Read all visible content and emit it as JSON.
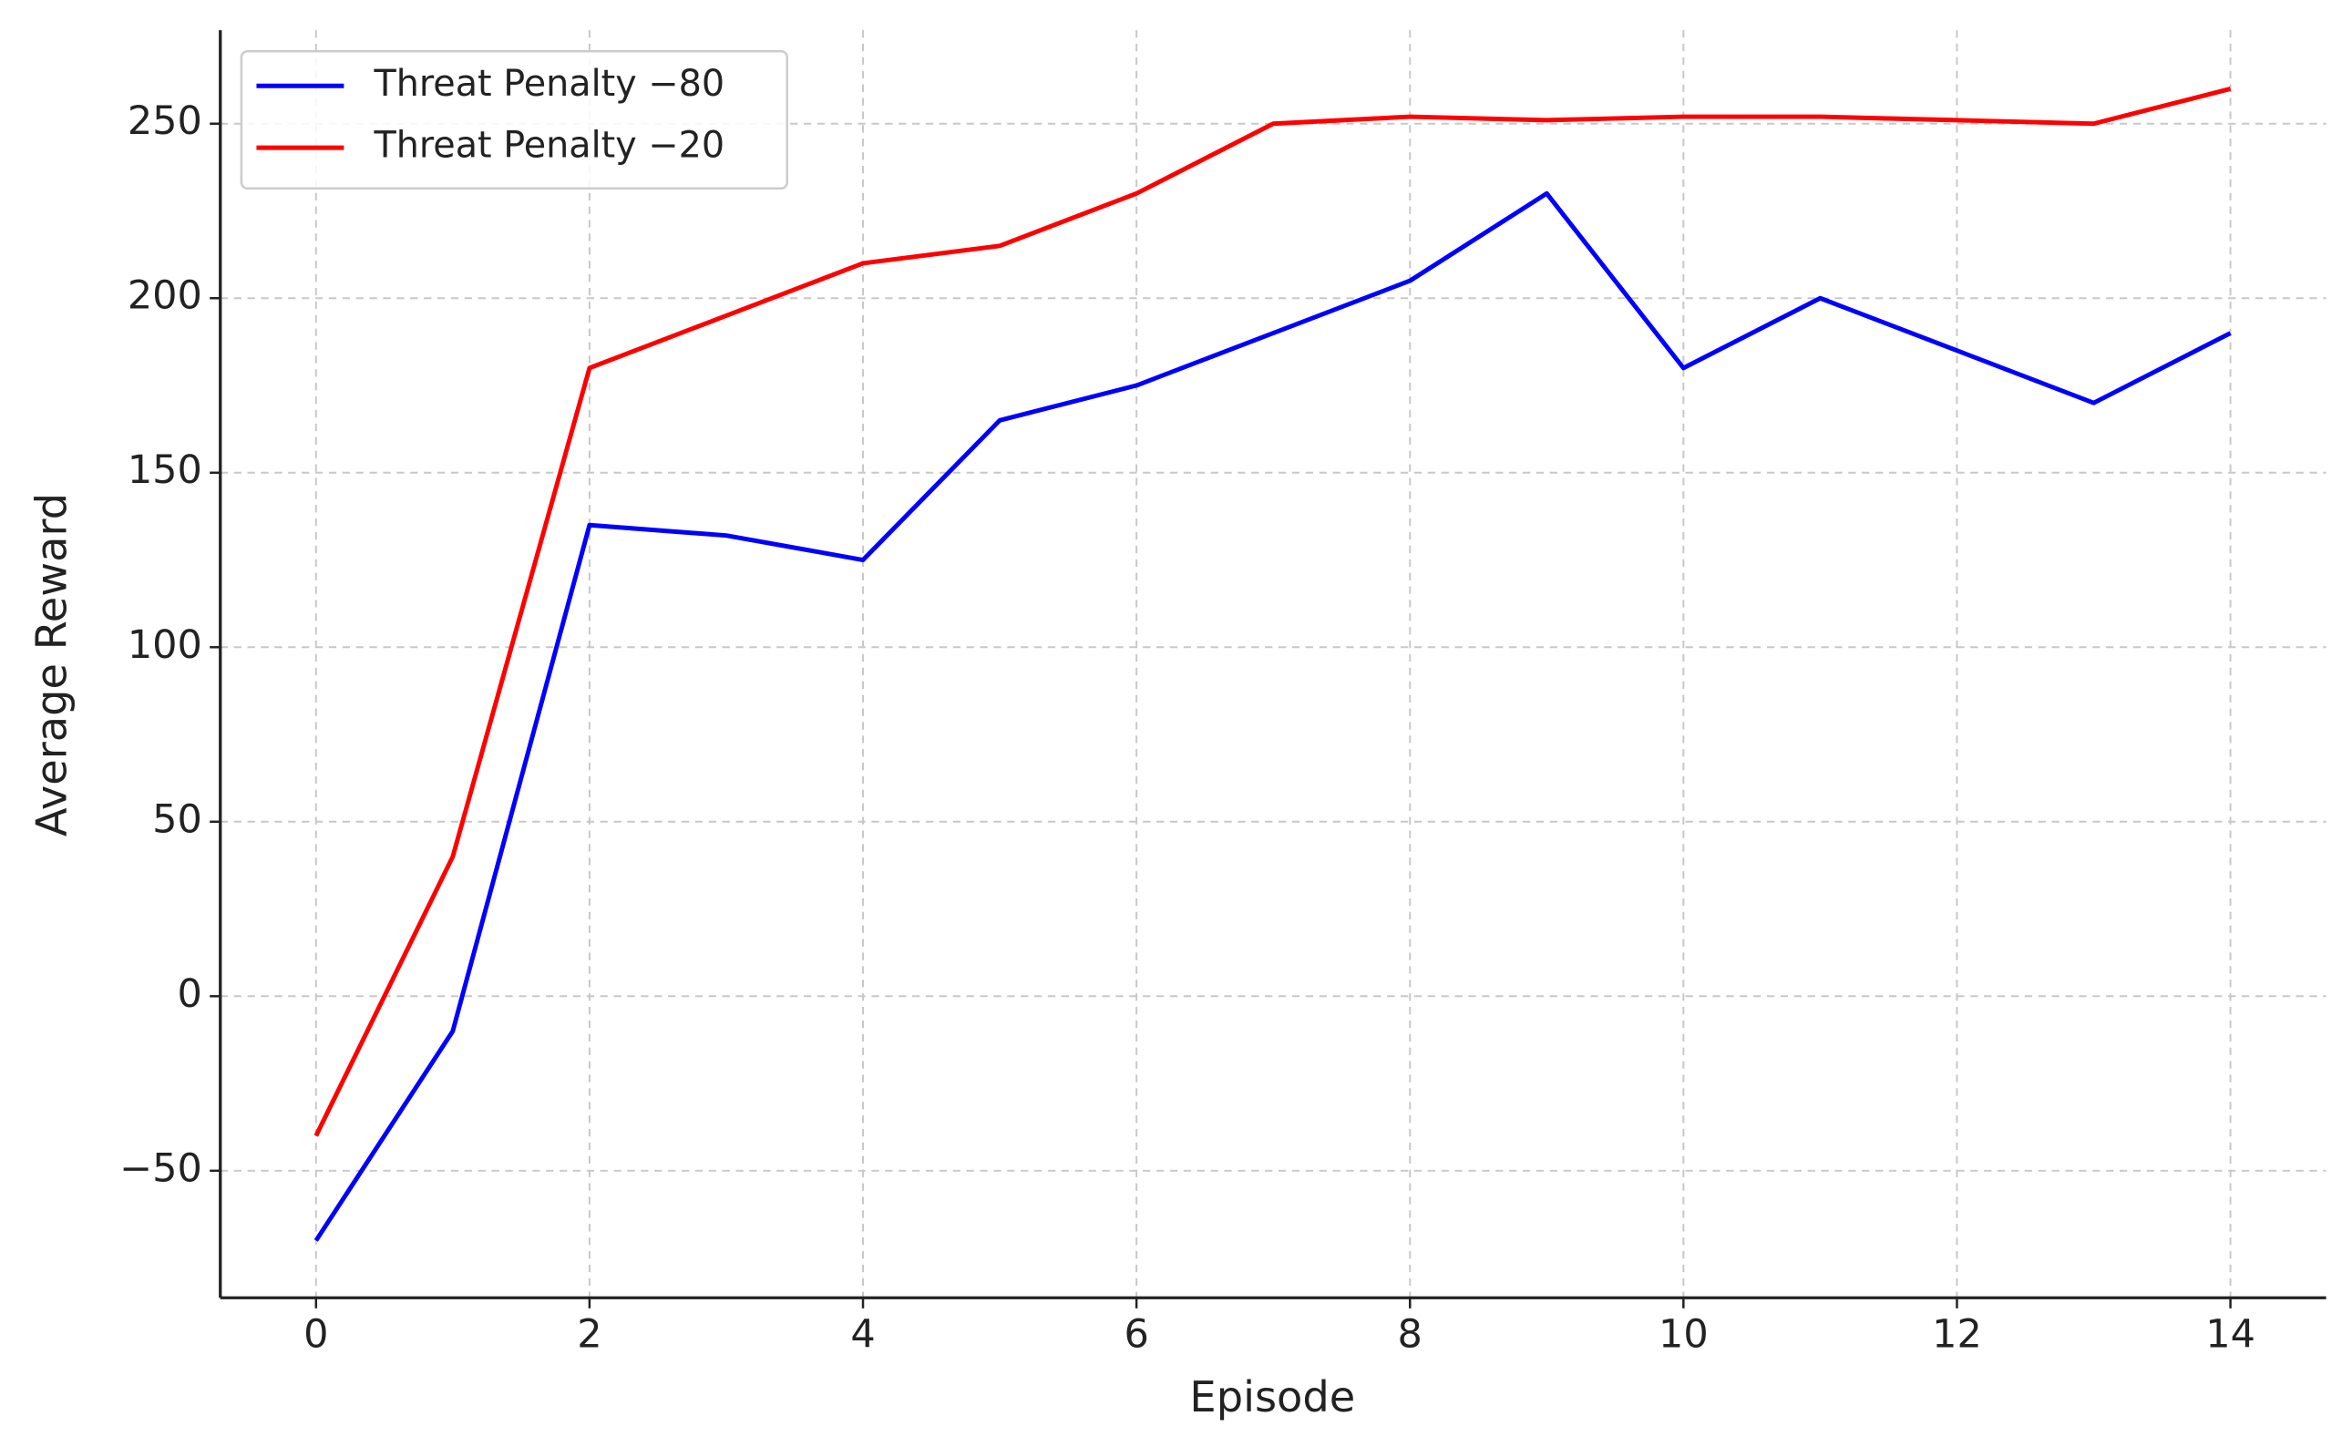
{
  "chart_data": {
    "type": "line",
    "xlabel": "Episode",
    "ylabel": "Average Reward",
    "x": [
      0,
      1,
      2,
      3,
      4,
      5,
      6,
      7,
      8,
      9,
      10,
      11,
      12,
      13,
      14
    ],
    "series": [
      {
        "name": "Threat Penalty −80",
        "color": "#0000ff",
        "values": [
          -70,
          -10,
          135,
          132,
          125,
          165,
          175,
          190,
          205,
          230,
          180,
          200,
          185,
          170,
          190
        ]
      },
      {
        "name": "Threat Penalty −20",
        "color": "#ff0000",
        "values": [
          -40,
          40,
          180,
          195,
          210,
          215,
          230,
          250,
          252,
          251,
          252,
          252,
          251,
          250,
          260
        ]
      }
    ],
    "xlim": [
      -0.7,
      14.7
    ],
    "ylim": [
      -86.4,
      276.8
    ],
    "xticks": [
      0,
      2,
      4,
      6,
      8,
      10,
      12,
      14
    ],
    "yticks": [
      {
        "value": -50,
        "label": "−50"
      },
      0,
      50,
      100,
      150,
      200,
      250
    ],
    "grid": true,
    "legend": "upper left"
  }
}
